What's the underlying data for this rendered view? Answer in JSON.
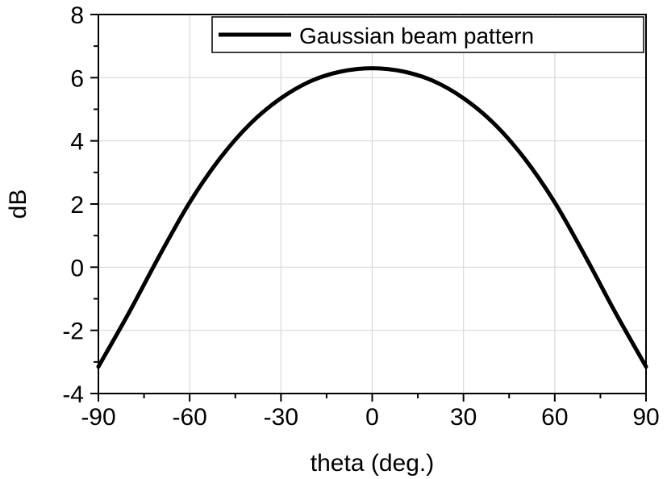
{
  "chart_data": {
    "type": "line",
    "xlabel": "theta (deg.)",
    "ylabel": "dB",
    "xlim": [
      -90,
      90
    ],
    "ylim": [
      -4,
      8
    ],
    "xticks": [
      -90,
      -60,
      -30,
      0,
      30,
      60,
      90
    ],
    "yticks": [
      -4,
      -2,
      0,
      2,
      4,
      6,
      8
    ],
    "x_tick_labels": [
      "-90",
      "-60",
      "-30",
      "0",
      "30",
      "60",
      "90"
    ],
    "y_tick_labels": [
      "-4",
      "-2",
      "0",
      "2",
      "4",
      "6",
      "8"
    ],
    "grid": true,
    "legend": {
      "position": "top-right"
    },
    "colors": {
      "series": "#000000",
      "grid": "#d9d9d9",
      "axis": "#000000"
    },
    "series": [
      {
        "name": "Gaussian beam pattern",
        "x": [
          -90,
          -80,
          -70,
          -60,
          -50,
          -40,
          -30,
          -20,
          -10,
          0,
          10,
          20,
          30,
          40,
          50,
          60,
          70,
          80,
          90
        ],
        "y": [
          -3.15,
          -1.45,
          0.35,
          2.05,
          3.45,
          4.55,
          5.35,
          5.9,
          6.2,
          6.3,
          6.2,
          5.9,
          5.35,
          4.55,
          3.45,
          2.05,
          0.35,
          -1.45,
          -3.15
        ]
      }
    ]
  }
}
